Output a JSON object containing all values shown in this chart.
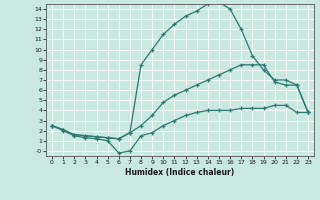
{
  "xlabel": "Humidex (Indice chaleur)",
  "x": [
    0,
    1,
    2,
    3,
    4,
    5,
    6,
    7,
    8,
    9,
    10,
    11,
    12,
    13,
    14,
    15,
    16,
    17,
    18,
    19,
    20,
    21,
    22,
    23
  ],
  "line1": [
    2.5,
    2.1,
    1.6,
    1.5,
    1.4,
    1.3,
    1.2,
    1.8,
    8.5,
    10.0,
    11.5,
    12.5,
    13.3,
    13.8,
    14.5,
    14.7,
    14.0,
    12.0,
    9.4,
    8.0,
    7.0,
    7.0,
    6.5,
    3.8
  ],
  "line2": [
    2.5,
    2.1,
    1.6,
    1.5,
    1.4,
    1.3,
    1.2,
    1.8,
    2.5,
    3.5,
    4.8,
    5.5,
    6.0,
    6.5,
    7.0,
    7.5,
    8.0,
    8.5,
    8.5,
    8.5,
    6.8,
    6.5,
    6.5,
    3.8
  ],
  "line3": [
    2.5,
    2.0,
    1.5,
    1.3,
    1.2,
    1.0,
    -0.2,
    0.0,
    1.5,
    1.8,
    2.5,
    3.0,
    3.5,
    3.8,
    4.0,
    4.0,
    4.0,
    4.2,
    4.2,
    4.2,
    4.5,
    4.5,
    3.8,
    3.8
  ],
  "line_color": "#2d7a72",
  "bg_color": "#c8e8e0",
  "ylim": [
    -0.5,
    14.5
  ],
  "xlim": [
    -0.5,
    23.5
  ],
  "yticks": [
    0,
    1,
    2,
    3,
    4,
    5,
    6,
    7,
    8,
    9,
    10,
    11,
    12,
    13,
    14
  ],
  "ytick_labels": [
    "-0",
    "1",
    "2",
    "3",
    "4",
    "5",
    "6",
    "7",
    "8",
    "9",
    "10",
    "11",
    "12",
    "13",
    "14"
  ],
  "xticks": [
    0,
    1,
    2,
    3,
    4,
    5,
    6,
    7,
    8,
    9,
    10,
    11,
    12,
    13,
    14,
    15,
    16,
    17,
    18,
    19,
    20,
    21,
    22,
    23
  ]
}
